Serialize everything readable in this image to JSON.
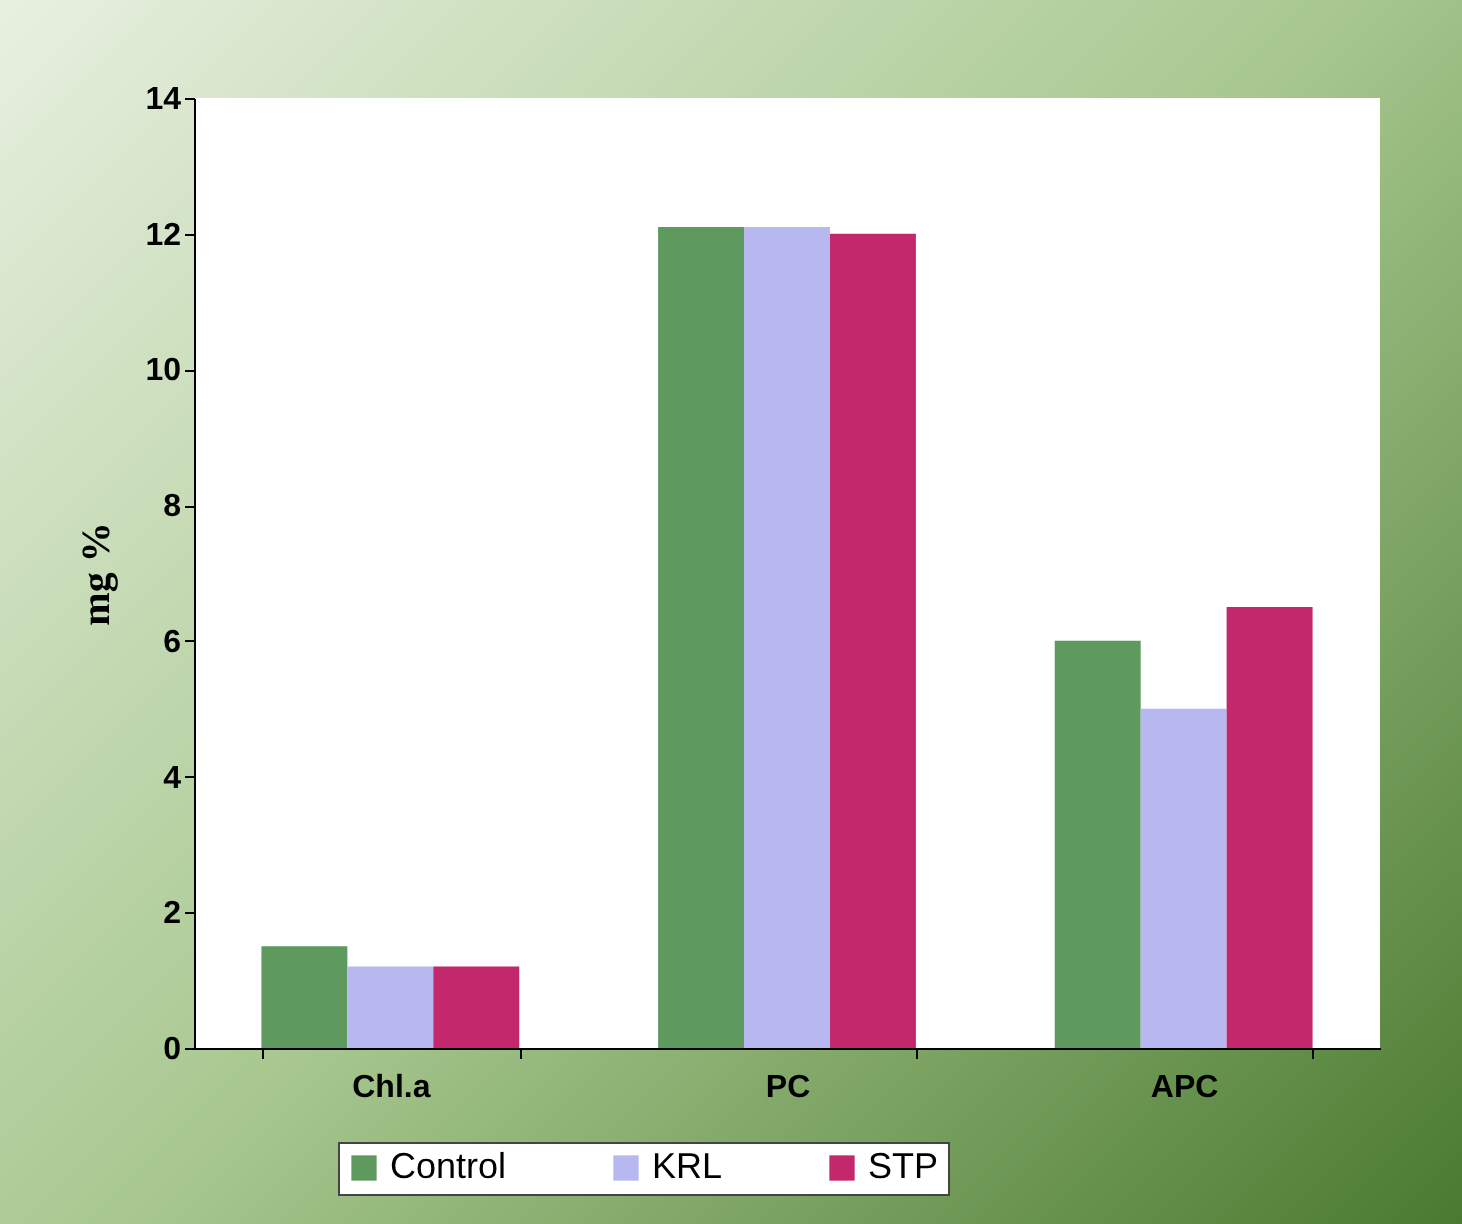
{
  "chart_data": {
    "type": "bar",
    "ylabel": "mg %",
    "categories": [
      "Chl.a",
      "PC",
      "APC"
    ],
    "series": [
      {
        "name": "Control",
        "color": "#5e9a5e",
        "values": [
          1.5,
          12.1,
          6.0
        ]
      },
      {
        "name": "KRL",
        "color": "#b8b8f0",
        "values": [
          1.2,
          12.1,
          5.0
        ]
      },
      {
        "name": "STP",
        "color": "#c4286c",
        "values": [
          1.2,
          12.0,
          6.5
        ]
      }
    ],
    "ylim": [
      0,
      14
    ],
    "yticks": [
      0,
      2,
      4,
      6,
      8,
      10,
      12,
      14
    ],
    "grid": false,
    "legend": "bottom"
  }
}
